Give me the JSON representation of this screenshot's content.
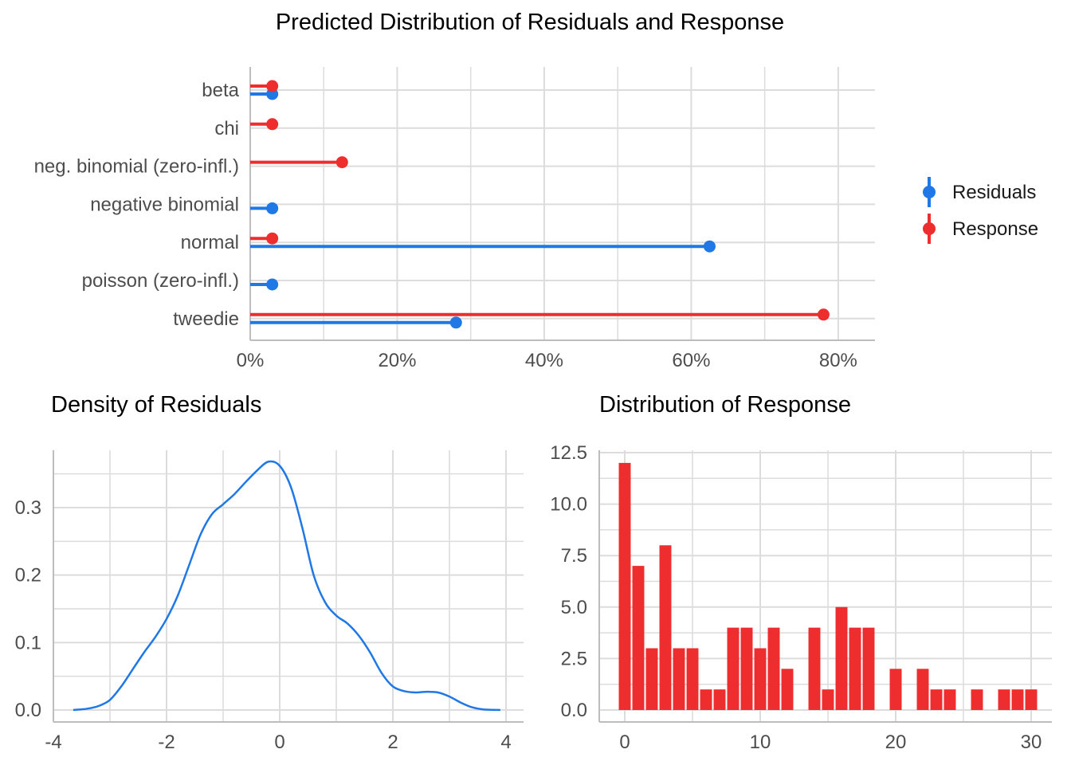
{
  "colors": {
    "residuals": "#1f78e6",
    "response": "#ee2e2e",
    "grid": "#dcdcdc",
    "axis": "#bdbdbd"
  },
  "chart_data": [
    {
      "type": "bar",
      "orientation": "horizontal",
      "title": "Predicted Distribution of Residuals and Response",
      "categories": [
        "beta",
        "chi",
        "neg. binomial (zero-infl.)",
        "negative binomial",
        "normal",
        "poisson (zero-infl.)",
        "tweedie"
      ],
      "series": [
        {
          "name": "Residuals",
          "color": "#1f78e6",
          "values": [
            3,
            null,
            null,
            3,
            62.5,
            3,
            28
          ]
        },
        {
          "name": "Response",
          "color": "#ee2e2e",
          "values": [
            3,
            3,
            12.5,
            null,
            3,
            null,
            78
          ]
        }
      ],
      "xlim": [
        0,
        85
      ],
      "xticks": [
        0,
        20,
        40,
        60,
        80
      ],
      "xtick_labels": [
        "0%",
        "20%",
        "40%",
        "60%",
        "80%"
      ],
      "legend_position": "right",
      "grid": true
    },
    {
      "type": "line",
      "title": "Density of Residuals",
      "x": [
        -3.65,
        -3.4,
        -3.2,
        -3.0,
        -2.8,
        -2.6,
        -2.4,
        -2.2,
        -2.0,
        -1.8,
        -1.6,
        -1.4,
        -1.2,
        -1.0,
        -0.8,
        -0.6,
        -0.4,
        -0.2,
        0.0,
        0.2,
        0.4,
        0.6,
        0.8,
        1.0,
        1.2,
        1.4,
        1.6,
        1.8,
        2.0,
        2.2,
        2.4,
        2.6,
        2.8,
        3.0,
        3.2,
        3.4,
        3.6,
        3.9
      ],
      "y": [
        0.0,
        0.002,
        0.006,
        0.015,
        0.035,
        0.06,
        0.085,
        0.108,
        0.135,
        0.17,
        0.215,
        0.26,
        0.29,
        0.305,
        0.32,
        0.338,
        0.355,
        0.368,
        0.362,
        0.33,
        0.27,
        0.2,
        0.16,
        0.14,
        0.128,
        0.11,
        0.085,
        0.055,
        0.035,
        0.028,
        0.026,
        0.027,
        0.026,
        0.02,
        0.011,
        0.004,
        0.001,
        0.0
      ],
      "xlim": [
        -4,
        4
      ],
      "ylim": [
        0,
        0.38
      ],
      "xticks": [
        -4,
        -2,
        0,
        2,
        4
      ],
      "xtick_labels": [
        "-4",
        "-2",
        "0",
        "2",
        "4"
      ],
      "yticks": [
        0.0,
        0.1,
        0.2,
        0.3
      ],
      "ytick_labels": [
        "0.0",
        "0.1",
        "0.2",
        "0.3"
      ],
      "grid": true
    },
    {
      "type": "bar",
      "title": "Distribution of Response",
      "x": [
        0,
        1,
        2,
        3,
        4,
        5,
        6,
        7,
        8,
        9,
        10,
        11,
        12,
        13,
        14,
        15,
        16,
        17,
        18,
        19,
        20,
        21,
        22,
        23,
        24,
        25,
        26,
        27,
        28,
        29,
        30
      ],
      "values": [
        12,
        7,
        3,
        8,
        3,
        3,
        1,
        1,
        4,
        4,
        3,
        4,
        2,
        0,
        4,
        1,
        5,
        4,
        4,
        0,
        2,
        0,
        2,
        1,
        1,
        0,
        1,
        0,
        1,
        1,
        1
      ],
      "xlim": [
        -1.5,
        31.5
      ],
      "ylim": [
        0,
        12.5
      ],
      "xticks": [
        0,
        10,
        20,
        30
      ],
      "xtick_labels": [
        "0",
        "10",
        "20",
        "30"
      ],
      "yticks": [
        0,
        2.5,
        5,
        7.5,
        10,
        12.5
      ],
      "ytick_labels": [
        "0.0",
        "2.5",
        "5.0",
        "7.5",
        "10.0",
        "12.5"
      ],
      "grid": true
    }
  ]
}
